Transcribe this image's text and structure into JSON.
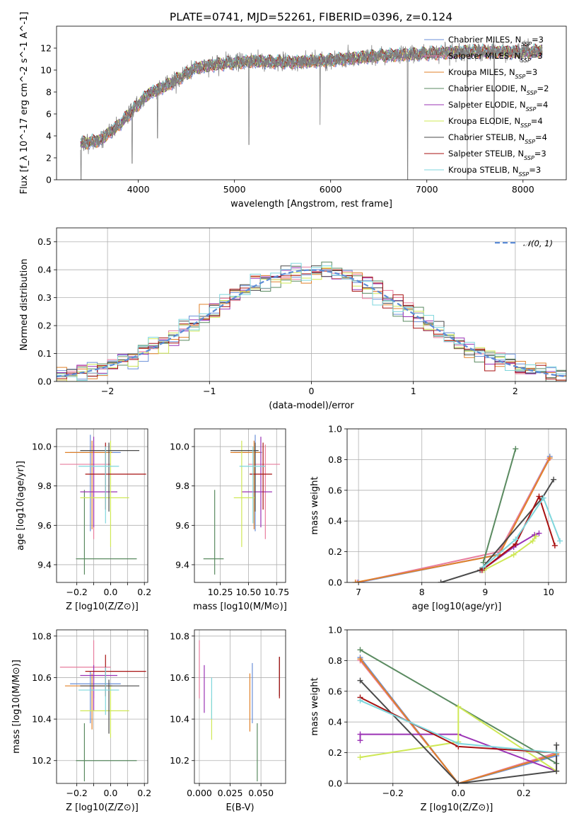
{
  "figure": {
    "title": "PLATE=0741, MJD=52261, FIBERID=0396, z=0.124"
  },
  "series": [
    {
      "key": "chab_miles",
      "label": "Chabrier MILES, N_SSP=3",
      "color": "#6a8fd8"
    },
    {
      "key": "salp_miles",
      "label": "Salpeter MILES, N_SSP=3",
      "color": "#e87d9e"
    },
    {
      "key": "krou_miles",
      "label": "Kroupa MILES, N_SSP=3",
      "color": "#e0812a"
    },
    {
      "key": "chab_elodie",
      "label": "Chabrier ELODIE, N_SSP=2",
      "color": "#5a8a60"
    },
    {
      "key": "salp_elodie",
      "label": "Salpeter ELODIE, N_SSP=4",
      "color": "#9b33b5"
    },
    {
      "key": "krou_elodie",
      "label": "Kroupa ELODIE, N_SSP=4",
      "color": "#cfe856"
    },
    {
      "key": "chab_stelib",
      "label": "Chabrier STELIB, N_SSP=4",
      "color": "#4a4a4a"
    },
    {
      "key": "salp_stelib",
      "label": "Salpeter STELIB, N_SSP=3",
      "color": "#a81212"
    },
    {
      "key": "krou_stelib",
      "label": "Kroupa STELIB, N_SSP=3",
      "color": "#7ed6dc"
    }
  ],
  "chart_data": [
    {
      "id": "spectrum",
      "type": "line",
      "xlabel": "wavelength [Angstrom, rest frame]",
      "ylabel": "Flux [f_λ 10^-17 erg cm^-2 s^-1 A^-1]",
      "xlim": [
        3150,
        8450
      ],
      "ylim": [
        0,
        14
      ],
      "xticks": [
        4000,
        5000,
        6000,
        7000,
        8000
      ],
      "yticks": [
        0,
        2,
        4,
        6,
        8,
        10,
        12
      ],
      "legend_position": "upper-right",
      "data_color": "#808080",
      "continuum_knots": {
        "x": [
          3400,
          3600,
          3800,
          3950,
          4100,
          4300,
          4600,
          4900,
          5200,
          5600,
          6000,
          6500,
          7000,
          7500,
          8000,
          8200
        ],
        "y": [
          3.3,
          3.6,
          5.0,
          6.4,
          7.8,
          8.6,
          10.2,
          10.6,
          10.8,
          10.7,
          10.9,
          11.3,
          11.5,
          11.7,
          11.6,
          11.8
        ]
      },
      "absorption_dips": [
        {
          "x": 3405,
          "y": 0.0
        },
        {
          "x": 3935,
          "y": 1.5
        },
        {
          "x": 4200,
          "y": 3.8
        },
        {
          "x": 5150,
          "y": 3.2
        },
        {
          "x": 5890,
          "y": 5.0
        },
        {
          "x": 6800,
          "y": 0.0
        },
        {
          "x": 7420,
          "y": 0.0
        },
        {
          "x": 7700,
          "y": 5.0
        }
      ]
    },
    {
      "id": "residuals",
      "type": "histogram",
      "xlabel": "(data-model)/error",
      "ylabel": "Normed distribution",
      "xlim": [
        -2.5,
        2.5
      ],
      "ylim": [
        0,
        0.55
      ],
      "xticks": [
        -2,
        -1,
        0,
        1,
        2
      ],
      "yticks": [
        0.0,
        0.1,
        0.2,
        0.3,
        0.4,
        0.5
      ],
      "grid": true,
      "bin_width": 0.1,
      "reference_curve": "𝒩(0, 1)",
      "reference_color": "#5b8bd6"
    },
    {
      "id": "age_vs_Z",
      "type": "errorbar",
      "xlabel": "Z [log10(Z/Z⊙)]",
      "ylabel": "age [log10(age/yr)]",
      "xlim": [
        -0.32,
        0.22
      ],
      "ylim": [
        9.31,
        10.09
      ],
      "xticks": [
        -0.2,
        -0.1,
        0.0,
        0.1,
        0.2
      ],
      "xtick_labels": [
        "−0.2",
        "",
        "0.0",
        "",
        "0.2"
      ],
      "yticks": [
        9.4,
        9.6,
        9.8,
        10.0
      ],
      "grid": true,
      "points": [
        {
          "series": "chab_miles",
          "x": -0.12,
          "xerr": [
            0.12,
            0.18
          ],
          "y": 9.97,
          "yerr": [
            0.4,
            0.09
          ]
        },
        {
          "series": "salp_miles",
          "x": -0.1,
          "xerr": [
            0.2,
            0.1
          ],
          "y": 9.91,
          "yerr": [
            0.38,
            0.1
          ]
        },
        {
          "series": "krou_miles",
          "x": -0.11,
          "xerr": [
            0.16,
            0.12
          ],
          "y": 9.97,
          "yerr": [
            0.39,
            0.06
          ]
        },
        {
          "series": "chab_elodie",
          "x": -0.155,
          "xerr": [
            0.05,
            0.31
          ],
          "y": 9.43,
          "yerr": [
            0.08,
            0.35
          ]
        },
        {
          "series": "salp_elodie",
          "x": -0.1,
          "xerr": [
            0.08,
            0.14
          ],
          "y": 9.77,
          "yerr": [
            0.18,
            0.28
          ]
        },
        {
          "series": "krou_elodie",
          "x": 0.0,
          "xerr": [
            0.18,
            0.11
          ],
          "y": 9.74,
          "yerr": [
            0.25,
            0.29
          ]
        },
        {
          "series": "chab_stelib",
          "x": -0.01,
          "xerr": [
            0.17,
            0.18
          ],
          "y": 9.98,
          "yerr": [
            0.31,
            0.04
          ]
        },
        {
          "series": "salp_stelib",
          "x": -0.03,
          "xerr": [
            0.12,
            0.24
          ],
          "y": 9.86,
          "yerr": [
            0.18,
            0.16
          ]
        },
        {
          "series": "krou_stelib",
          "x": -0.03,
          "xerr": [
            0.16,
            0.08
          ],
          "y": 9.9,
          "yerr": [
            0.29,
            0.1
          ]
        }
      ]
    },
    {
      "id": "age_vs_mass",
      "type": "errorbar",
      "xlabel": "mass [log10(M/M⊙)]",
      "ylabel": "",
      "xlim": [
        10.02,
        10.83
      ],
      "ylim": [
        9.31,
        10.09
      ],
      "xticks": [
        10.25,
        10.5,
        10.75
      ],
      "xtick_labels": [
        "10.25",
        "10.50",
        "10.75"
      ],
      "yticks": [
        9.4,
        9.6,
        9.8,
        10.0
      ],
      "grid": true,
      "points": [
        {
          "series": "chab_miles",
          "x": 10.56,
          "xerr": [
            0.19,
            0.06
          ],
          "y": 9.97,
          "yerr": [
            0.4,
            0.09
          ]
        },
        {
          "series": "salp_miles",
          "x": 10.65,
          "xerr": [
            0.15,
            0.13
          ],
          "y": 9.91,
          "yerr": [
            0.38,
            0.1
          ]
        },
        {
          "series": "krou_miles",
          "x": 10.55,
          "xerr": [
            0.21,
            0.06
          ],
          "y": 9.97,
          "yerr": [
            0.39,
            0.06
          ]
        },
        {
          "series": "chab_elodie",
          "x": 10.2,
          "xerr": [
            0.1,
            0.08
          ],
          "y": 9.43,
          "yerr": [
            0.08,
            0.35
          ]
        },
        {
          "series": "salp_elodie",
          "x": 10.61,
          "xerr": [
            0.17,
            0.1
          ],
          "y": 9.77,
          "yerr": [
            0.18,
            0.28
          ]
        },
        {
          "series": "krou_elodie",
          "x": 10.44,
          "xerr": [
            0.07,
            0.12
          ],
          "y": 9.74,
          "yerr": [
            0.25,
            0.29
          ]
        },
        {
          "series": "chab_stelib",
          "x": 10.56,
          "xerr": [
            0.22,
            0.03
          ],
          "y": 9.98,
          "yerr": [
            0.31,
            0.04
          ]
        },
        {
          "series": "salp_stelib",
          "x": 10.63,
          "xerr": [
            0.12,
            0.08
          ],
          "y": 9.86,
          "yerr": [
            0.18,
            0.16
          ]
        },
        {
          "series": "krou_stelib",
          "x": 10.54,
          "xerr": [
            0.12,
            0.11
          ],
          "y": 9.9,
          "yerr": [
            0.29,
            0.1
          ]
        }
      ]
    },
    {
      "id": "weight_vs_age",
      "type": "line",
      "xlabel": "age [log10(age/yr)]",
      "ylabel": "mass weight",
      "xlim": [
        6.82,
        10.28
      ],
      "ylim": [
        0,
        1.0
      ],
      "xticks": [
        7,
        8,
        9,
        10
      ],
      "yticks": [
        0.0,
        0.2,
        0.4,
        0.6,
        0.8,
        1.0
      ],
      "grid": true,
      "lines": [
        {
          "series": "chab_miles",
          "x": [
            7.0,
            9.2,
            10.02
          ],
          "y": [
            0.0,
            0.18,
            0.82
          ]
        },
        {
          "series": "salp_miles",
          "x": [
            6.98,
            9.22,
            10.0
          ],
          "y": [
            0.0,
            0.2,
            0.8
          ]
        },
        {
          "series": "krou_miles",
          "x": [
            6.95,
            9.22,
            10.02
          ],
          "y": [
            0.0,
            0.18,
            0.81
          ]
        },
        {
          "series": "chab_elodie",
          "x": [
            8.97,
            9.48
          ],
          "y": [
            0.13,
            0.87
          ]
        },
        {
          "series": "salp_elodie",
          "x": [
            8.95,
            9.45,
            9.78,
            9.85
          ],
          "y": [
            0.08,
            0.23,
            0.31,
            0.32
          ]
        },
        {
          "series": "krou_elodie",
          "x": [
            8.98,
            9.45,
            9.75,
            9.8
          ],
          "y": [
            0.08,
            0.18,
            0.27,
            0.3
          ]
        },
        {
          "series": "chab_stelib",
          "x": [
            8.3,
            8.92,
            9.9,
            10.08
          ],
          "y": [
            0.0,
            0.08,
            0.55,
            0.67
          ]
        },
        {
          "series": "salp_stelib",
          "x": [
            8.95,
            9.48,
            9.85,
            10.1
          ],
          "y": [
            0.08,
            0.25,
            0.56,
            0.24
          ]
        },
        {
          "series": "krou_stelib",
          "x": [
            8.97,
            9.48,
            9.92,
            10.18
          ],
          "y": [
            0.1,
            0.28,
            0.55,
            0.27
          ]
        }
      ]
    },
    {
      "id": "mass_vs_Z",
      "type": "errorbar",
      "xlabel": "Z [log10(Z/Z⊙)]",
      "ylabel": "mass [log10(M/M⊙)]",
      "xlim": [
        -0.32,
        0.22
      ],
      "ylim": [
        10.09,
        10.83
      ],
      "xticks": [
        -0.2,
        -0.1,
        0.0,
        0.1,
        0.2
      ],
      "xtick_labels": [
        "−0.2",
        "",
        "0.0",
        "",
        "0.2"
      ],
      "yticks": [
        10.2,
        10.4,
        10.6,
        10.8
      ],
      "grid": true,
      "points": [
        {
          "series": "chab_miles",
          "x": -0.12,
          "xerr": [
            0.12,
            0.18
          ],
          "y": 10.57,
          "yerr": [
            0.19,
            0.06
          ]
        },
        {
          "series": "salp_miles",
          "x": -0.1,
          "xerr": [
            0.2,
            0.1
          ],
          "y": 10.65,
          "yerr": [
            0.15,
            0.13
          ]
        },
        {
          "series": "krou_miles",
          "x": -0.11,
          "xerr": [
            0.16,
            0.12
          ],
          "y": 10.56,
          "yerr": [
            0.21,
            0.06
          ]
        },
        {
          "series": "chab_elodie",
          "x": -0.155,
          "xerr": [
            0.05,
            0.31
          ],
          "y": 10.2,
          "yerr": [
            0.1,
            0.18
          ]
        },
        {
          "series": "salp_elodie",
          "x": -0.1,
          "xerr": [
            0.08,
            0.14
          ],
          "y": 10.61,
          "yerr": [
            0.17,
            0.05
          ]
        },
        {
          "series": "krou_elodie",
          "x": 0.0,
          "xerr": [
            0.18,
            0.11
          ],
          "y": 10.44,
          "yerr": [
            0.13,
            0.12
          ]
        },
        {
          "series": "chab_stelib",
          "x": -0.01,
          "xerr": [
            0.17,
            0.18
          ],
          "y": 10.56,
          "yerr": [
            0.23,
            0.03
          ]
        },
        {
          "series": "salp_stelib",
          "x": -0.03,
          "xerr": [
            0.12,
            0.24
          ],
          "y": 10.63,
          "yerr": [
            0.12,
            0.08
          ]
        },
        {
          "series": "krou_stelib",
          "x": -0.03,
          "xerr": [
            0.16,
            0.08
          ],
          "y": 10.54,
          "yerr": [
            0.12,
            0.11
          ]
        }
      ]
    },
    {
      "id": "mass_vs_ebv",
      "type": "errorbar",
      "xlabel": "E(B-V)",
      "ylabel": "",
      "xlim": [
        -0.004,
        0.07
      ],
      "ylim": [
        10.09,
        10.83
      ],
      "xticks": [
        0.0,
        0.025,
        0.05
      ],
      "xtick_labels": [
        "0.000",
        "0.025",
        "0.050"
      ],
      "yticks": [
        10.2,
        10.4,
        10.6,
        10.8
      ],
      "grid": true,
      "points": [
        {
          "series": "chab_miles",
          "x": 0.043,
          "xerr": [
            0,
            0
          ],
          "y": 10.57,
          "yerr": [
            0.19,
            0.1
          ]
        },
        {
          "series": "salp_miles",
          "x": 0.0,
          "xerr": [
            0,
            0
          ],
          "y": 10.65,
          "yerr": [
            0.15,
            0.13
          ]
        },
        {
          "series": "krou_miles",
          "x": 0.041,
          "xerr": [
            0,
            0
          ],
          "y": 10.5,
          "yerr": [
            0.16,
            0.12
          ]
        },
        {
          "series": "chab_elodie",
          "x": 0.047,
          "xerr": [
            0,
            0
          ],
          "y": 10.3,
          "yerr": [
            0.2,
            0.08
          ]
        },
        {
          "series": "salp_elodie",
          "x": 0.004,
          "xerr": [
            0,
            0
          ],
          "y": 10.55,
          "yerr": [
            0.12,
            0.11
          ]
        },
        {
          "series": "krou_elodie",
          "x": 0.01,
          "xerr": [
            0,
            0
          ],
          "y": 10.4,
          "yerr": [
            0.1,
            0.1
          ]
        },
        {
          "series": "chab_stelib",
          "x": 0.065,
          "xerr": [
            0,
            0
          ],
          "y": 10.6,
          "yerr": [
            0.09,
            0.1
          ]
        },
        {
          "series": "salp_stelib",
          "x": 0.065,
          "xerr": [
            0,
            0
          ],
          "y": 10.6,
          "yerr": [
            0.1,
            0.1
          ]
        },
        {
          "series": "krou_stelib",
          "x": 0.01,
          "xerr": [
            0,
            0
          ],
          "y": 10.5,
          "yerr": [
            0.1,
            0.1
          ]
        }
      ]
    },
    {
      "id": "weight_vs_Z",
      "type": "line",
      "xlabel": "Z [log10(Z/Z⊙)]",
      "ylabel": "mass weight",
      "xlim": [
        -0.34,
        0.33
      ],
      "ylim": [
        0,
        1.0
      ],
      "xticks": [
        -0.2,
        0.0,
        0.2
      ],
      "xtick_labels": [
        "−0.2",
        "0.0",
        "0.2"
      ],
      "yticks": [
        0.0,
        0.2,
        0.4,
        0.6,
        0.8,
        1.0
      ],
      "grid": true,
      "lines": [
        {
          "series": "chab_miles",
          "x": [
            -0.3,
            0.0,
            0.3
          ],
          "y": [
            0.82,
            0.0,
            0.18
          ]
        },
        {
          "series": "salp_miles",
          "x": [
            -0.3,
            0.0,
            0.3
          ],
          "y": [
            0.8,
            0.0,
            0.2
          ]
        },
        {
          "series": "krou_miles",
          "x": [
            -0.3,
            0.0,
            0.3
          ],
          "y": [
            0.81,
            0.0,
            0.19
          ]
        },
        {
          "series": "chab_elodie",
          "x": [
            -0.3,
            0.3
          ],
          "y": [
            0.87,
            0.13
          ]
        },
        {
          "series": "salp_elodie",
          "x": [
            -0.3,
            -0.3,
            0.0,
            0.3
          ],
          "y": [
            0.28,
            0.32,
            0.32,
            0.08
          ]
        },
        {
          "series": "krou_elodie",
          "x": [
            -0.3,
            0.0,
            0.0,
            0.3
          ],
          "y": [
            0.17,
            0.27,
            0.5,
            0.08
          ]
        },
        {
          "series": "chab_stelib",
          "x": [
            -0.3,
            0.0,
            0.3,
            0.3
          ],
          "y": [
            0.67,
            0.0,
            0.08,
            0.25
          ]
        },
        {
          "series": "salp_stelib",
          "x": [
            -0.3,
            0.0,
            0.3
          ],
          "y": [
            0.56,
            0.24,
            0.2
          ]
        },
        {
          "series": "krou_stelib",
          "x": [
            -0.3,
            0.0,
            0.3
          ],
          "y": [
            0.54,
            0.26,
            0.2
          ]
        }
      ]
    }
  ]
}
